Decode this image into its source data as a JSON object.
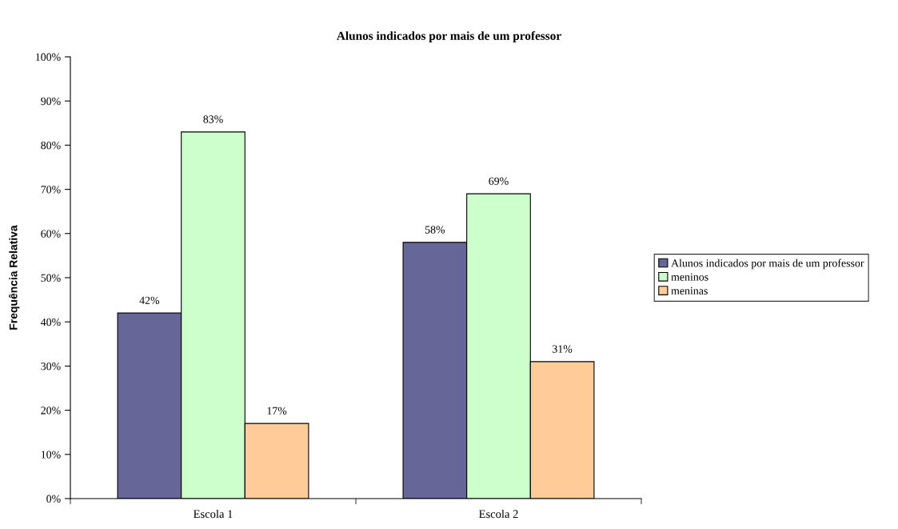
{
  "chart_data": {
    "type": "bar",
    "title": "Alunos indicados por mais de um professor",
    "ylabel": "Frequência Relativa",
    "categories": [
      "Escola 1",
      "Escola 2"
    ],
    "series": [
      {
        "name": "Alunos indicados por mais de um professor",
        "color": "#666699",
        "values": [
          42,
          58
        ],
        "value_labels": [
          "42%",
          "58%"
        ]
      },
      {
        "name": "meninos",
        "color": "#ccffcc",
        "values": [
          83,
          69
        ],
        "value_labels": [
          "83%",
          "69%"
        ]
      },
      {
        "name": "meninas",
        "color": "#ffcc99",
        "values": [
          17,
          31
        ],
        "value_labels": [
          "17%",
          "31%"
        ]
      }
    ],
    "ylim": [
      0,
      100
    ],
    "yticks": [
      {
        "value": 0,
        "label": "0%"
      },
      {
        "value": 10,
        "label": "10%"
      },
      {
        "value": 20,
        "label": "20%"
      },
      {
        "value": 30,
        "label": "30%"
      },
      {
        "value": 40,
        "label": "40%"
      },
      {
        "value": 50,
        "label": "50%"
      },
      {
        "value": 60,
        "label": "60%"
      },
      {
        "value": 70,
        "label": "70%"
      },
      {
        "value": 80,
        "label": "80%"
      },
      {
        "value": 90,
        "label": "90%"
      },
      {
        "value": 100,
        "label": "100%"
      }
    ],
    "grid": false,
    "legend": "right"
  }
}
